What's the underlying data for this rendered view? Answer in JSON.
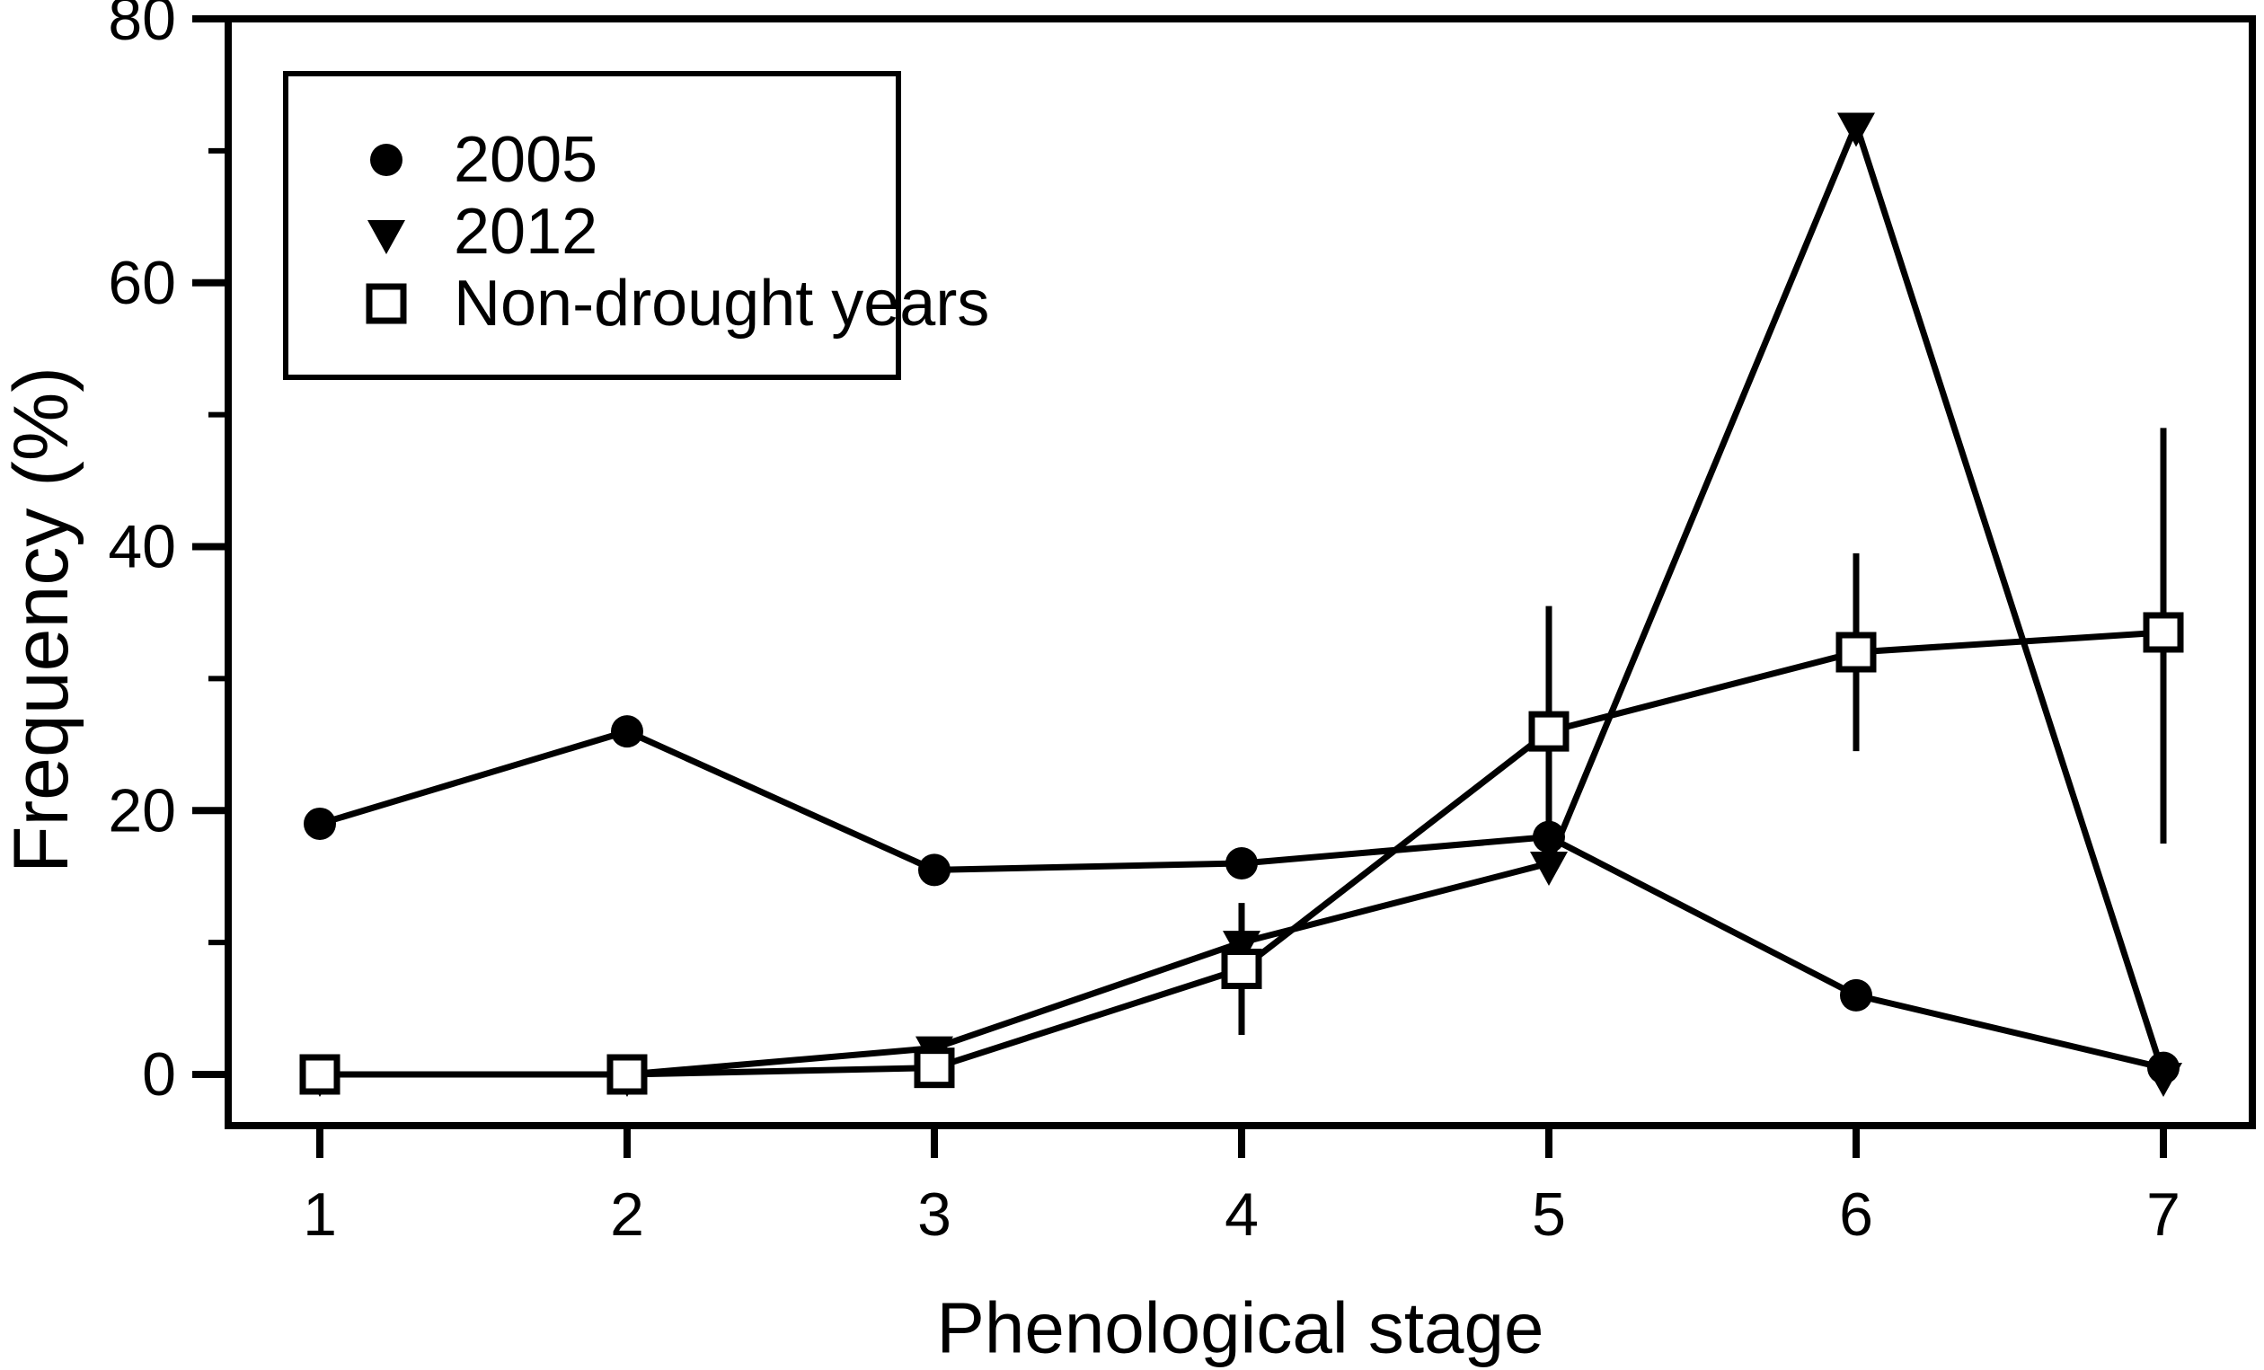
{
  "figure": {
    "background_color": "#ffffff",
    "foreground_color": "#000000",
    "y_axis_title": "Frequency (%)",
    "x_axis_title": "Phenological stage"
  },
  "legend": {
    "position": "top-left-inside",
    "items": [
      {
        "marker": "filled-circle",
        "label": "2005"
      },
      {
        "marker": "filled-triangle-down",
        "label": "2012"
      },
      {
        "marker": "open-square",
        "label": "Non-drought years"
      }
    ]
  },
  "chart_data": {
    "type": "line",
    "title": "",
    "xlabel": "Phenological stage",
    "ylabel": "Frequency (%)",
    "x": [
      1,
      2,
      3,
      4,
      5,
      6,
      7
    ],
    "x_tick_labels": [
      "1",
      "2",
      "3",
      "4",
      "5",
      "6",
      "7"
    ],
    "y_major_ticks": [
      0,
      20,
      40,
      60,
      80
    ],
    "y_minor_ticks": [
      10,
      30,
      50,
      70
    ],
    "ylim": [
      -4,
      80
    ],
    "xlim": [
      0.7,
      7.3
    ],
    "grid": false,
    "series": [
      {
        "name": "2012",
        "marker": "filled-triangle-down",
        "values": [
          0,
          0,
          2,
          10,
          16,
          72,
          0
        ]
      },
      {
        "name": "2005",
        "marker": "filled-circle",
        "values": [
          19,
          26,
          15.5,
          16,
          18,
          6,
          0.5
        ]
      },
      {
        "name": "Non-drought years",
        "marker": "open-square",
        "values": [
          0,
          0,
          0.5,
          8,
          26,
          32,
          33.5
        ],
        "error_bars": [
          {
            "x": 4,
            "low": 3,
            "high": 13
          },
          {
            "x": 5,
            "low": 16.5,
            "high": 35.5
          },
          {
            "x": 6,
            "low": 24.5,
            "high": 39.5
          },
          {
            "x": 7,
            "low": 17.5,
            "high": 49
          }
        ]
      }
    ]
  }
}
